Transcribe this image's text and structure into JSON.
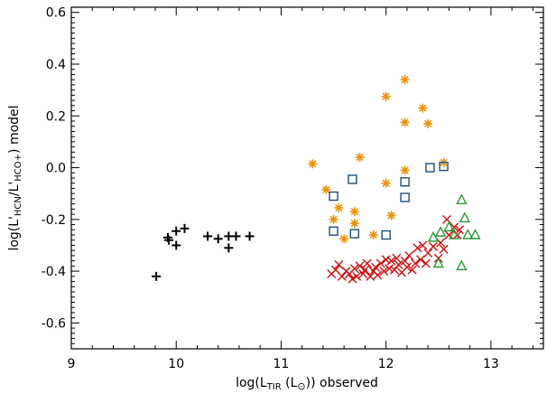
{
  "chart_data": {
    "type": "scatter",
    "title": "",
    "xlabel": "log(L_TIR (L⊙)) observed",
    "ylabel": "log(L'HCN/L'HCO+) model",
    "xlabel_parts": {
      "pre": "log(L",
      "sub": "TIR",
      "mid": " (L",
      "sun": "⊙",
      "post": ")) observed"
    },
    "ylabel_parts": {
      "pre": "log(L'",
      "sub1": "HCN",
      "mid": "/L'",
      "sub2": "HCO+",
      "post": ") model"
    },
    "xlim": [
      9,
      13.5
    ],
    "ylim": [
      -0.7,
      0.62
    ],
    "x_ticks": [
      {
        "value": 9,
        "label": "9"
      },
      {
        "value": 10,
        "label": "10"
      },
      {
        "value": 11,
        "label": "11"
      },
      {
        "value": 12,
        "label": "12"
      },
      {
        "value": 13,
        "label": "13"
      }
    ],
    "y_ticks": [
      {
        "value": 0.6,
        "label": "0.6"
      },
      {
        "value": 0.4,
        "label": "0.4"
      },
      {
        "value": 0.2,
        "label": "0.2"
      },
      {
        "value": 0.0,
        "label": "0.0"
      },
      {
        "value": -0.2,
        "label": "-0.2"
      },
      {
        "value": -0.4,
        "label": "-0.4"
      },
      {
        "value": -0.6,
        "label": "-0.6"
      }
    ],
    "grid": false,
    "series": [
      {
        "marker": "plus",
        "color": "#000000",
        "points": [
          [
            9.81,
            -0.42
          ],
          [
            9.92,
            -0.27
          ],
          [
            9.93,
            -0.28
          ],
          [
            10.0,
            -0.245
          ],
          [
            10.0,
            -0.3
          ],
          [
            10.08,
            -0.235
          ],
          [
            10.3,
            -0.265
          ],
          [
            10.4,
            -0.275
          ],
          [
            10.5,
            -0.265
          ],
          [
            10.5,
            -0.31
          ],
          [
            10.57,
            -0.265
          ],
          [
            10.7,
            -0.265
          ]
        ]
      },
      {
        "marker": "asterisk",
        "color": "#e8930c",
        "points": [
          [
            11.3,
            0.015
          ],
          [
            11.43,
            -0.085
          ],
          [
            11.5,
            -0.2
          ],
          [
            11.55,
            -0.155
          ],
          [
            11.6,
            -0.275
          ],
          [
            11.7,
            -0.17
          ],
          [
            11.7,
            -0.215
          ],
          [
            11.75,
            0.04
          ],
          [
            11.88,
            -0.26
          ],
          [
            12.0,
            -0.06
          ],
          [
            12.0,
            0.275
          ],
          [
            12.05,
            -0.185
          ],
          [
            12.18,
            0.34
          ],
          [
            12.18,
            0.175
          ],
          [
            12.18,
            -0.01
          ],
          [
            12.35,
            0.23
          ],
          [
            12.4,
            0.17
          ],
          [
            12.55,
            0.02
          ]
        ]
      },
      {
        "marker": "square",
        "color": "#1f4e79",
        "points": [
          [
            11.5,
            -0.11
          ],
          [
            11.5,
            -0.245
          ],
          [
            11.68,
            -0.045
          ],
          [
            11.7,
            -0.255
          ],
          [
            12.0,
            -0.26
          ],
          [
            12.18,
            -0.055
          ],
          [
            12.18,
            -0.115
          ],
          [
            12.42,
            0.0
          ],
          [
            12.55,
            0.005
          ]
        ]
      },
      {
        "marker": "cross",
        "color": "#cc1111",
        "points": [
          [
            11.48,
            -0.41
          ],
          [
            11.52,
            -0.395
          ],
          [
            11.55,
            -0.375
          ],
          [
            11.58,
            -0.42
          ],
          [
            11.62,
            -0.4
          ],
          [
            11.65,
            -0.41
          ],
          [
            11.68,
            -0.43
          ],
          [
            11.7,
            -0.39
          ],
          [
            11.72,
            -0.42
          ],
          [
            11.75,
            -0.38
          ],
          [
            11.78,
            -0.41
          ],
          [
            11.8,
            -0.395
          ],
          [
            11.82,
            -0.37
          ],
          [
            11.85,
            -0.42
          ],
          [
            11.88,
            -0.4
          ],
          [
            11.9,
            -0.385
          ],
          [
            11.92,
            -0.415
          ],
          [
            11.95,
            -0.37
          ],
          [
            11.98,
            -0.4
          ],
          [
            12.0,
            -0.355
          ],
          [
            12.03,
            -0.39
          ],
          [
            12.05,
            -0.36
          ],
          [
            12.08,
            -0.395
          ],
          [
            12.1,
            -0.35
          ],
          [
            12.12,
            -0.375
          ],
          [
            12.15,
            -0.405
          ],
          [
            12.18,
            -0.36
          ],
          [
            12.2,
            -0.385
          ],
          [
            12.22,
            -0.34
          ],
          [
            12.25,
            -0.395
          ],
          [
            12.28,
            -0.37
          ],
          [
            12.3,
            -0.31
          ],
          [
            12.33,
            -0.355
          ],
          [
            12.35,
            -0.3
          ],
          [
            12.38,
            -0.37
          ],
          [
            12.4,
            -0.33
          ],
          [
            12.45,
            -0.305
          ],
          [
            12.5,
            -0.35
          ],
          [
            12.52,
            -0.29
          ],
          [
            12.55,
            -0.315
          ],
          [
            12.58,
            -0.2
          ],
          [
            12.6,
            -0.26
          ],
          [
            12.65,
            -0.23
          ],
          [
            12.68,
            -0.26
          ],
          [
            12.7,
            -0.24
          ]
        ]
      },
      {
        "marker": "triangle",
        "color": "#2e9a3a",
        "points": [
          [
            12.45,
            -0.27
          ],
          [
            12.5,
            -0.37
          ],
          [
            12.52,
            -0.25
          ],
          [
            12.6,
            -0.23
          ],
          [
            12.65,
            -0.26
          ],
          [
            12.72,
            -0.125
          ],
          [
            12.72,
            -0.38
          ],
          [
            12.75,
            -0.195
          ],
          [
            12.78,
            -0.26
          ],
          [
            12.85,
            -0.26
          ]
        ]
      }
    ]
  }
}
